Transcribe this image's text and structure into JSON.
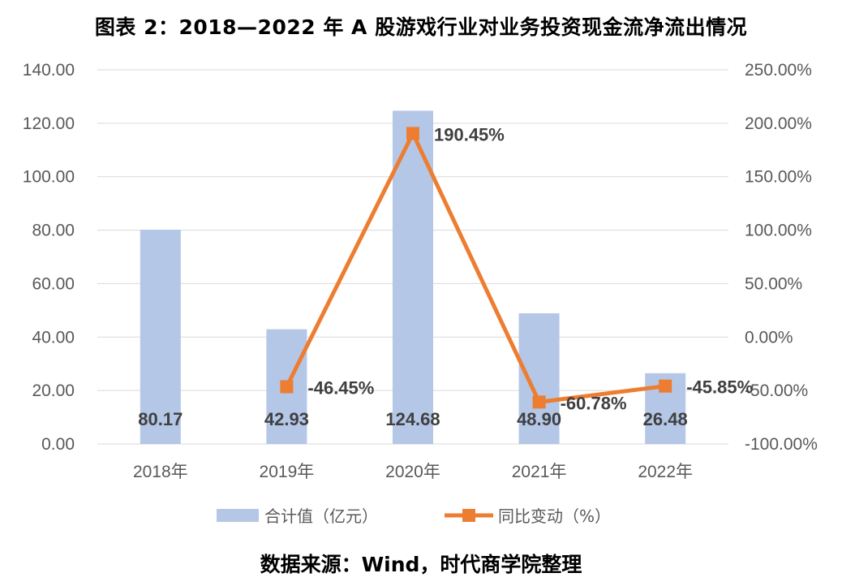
{
  "title": "图表 2：2018—2022 年 A 股游戏行业对业务投资现金流净流出情况",
  "source": "数据来源：Wind，时代商学院整理",
  "chart_data": {
    "type": "bar",
    "categories": [
      "2018年",
      "2019年",
      "2020年",
      "2021年",
      "2022年"
    ],
    "series": [
      {
        "name": "合计值（亿元）",
        "type": "bar",
        "axis": "left",
        "values": [
          80.17,
          42.93,
          124.68,
          48.9,
          26.48
        ],
        "labels": [
          "80.17",
          "42.93",
          "124.68",
          "48.90",
          "26.48"
        ],
        "color": "#b4c7e7"
      },
      {
        "name": "同比变动（%）",
        "type": "line",
        "axis": "right",
        "values": [
          null,
          -46.45,
          190.45,
          -60.78,
          -45.85
        ],
        "labels": [
          "",
          "-46.45%",
          "190.45%",
          "-60.78%",
          "-45.85%"
        ],
        "color": "#ed7d31"
      }
    ],
    "y_left": {
      "lim": [
        0,
        140
      ],
      "ticks": [
        0,
        20,
        40,
        60,
        80,
        100,
        120,
        140
      ],
      "tick_labels": [
        "0.00",
        "20.00",
        "40.00",
        "60.00",
        "80.00",
        "100.00",
        "120.00",
        "140.00"
      ]
    },
    "y_right": {
      "lim": [
        -100,
        250
      ],
      "ticks": [
        -100,
        -50,
        0,
        50,
        100,
        150,
        200,
        250
      ],
      "tick_labels": [
        "-100.00%",
        "-50.00%",
        "0.00%",
        "50.00%",
        "100.00%",
        "150.00%",
        "200.00%",
        "250.00%"
      ]
    },
    "grid": true,
    "legend": "bottom"
  }
}
